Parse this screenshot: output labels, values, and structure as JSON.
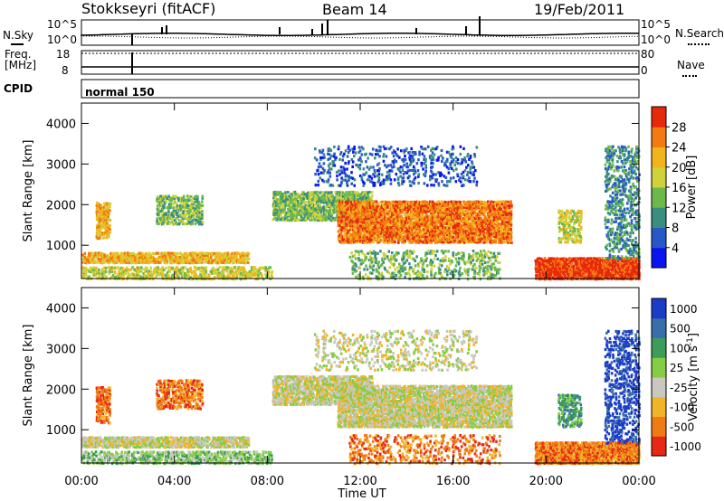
{
  "header": {
    "title": "Stokkseyri (fitACF)",
    "beam": "Beam 14",
    "date": "19/Feb/2011"
  },
  "noise_panel": {
    "left_label": "N.Sky",
    "right_label": "N.Search",
    "y_ticks_left": [
      "10^5",
      "10^0"
    ],
    "y_ticks_right": [
      "10^5",
      "10^0"
    ]
  },
  "freq_panel": {
    "left_label_line1": "Freq.",
    "left_label_line2": "[MHz]",
    "right_label": "Nave",
    "y_ticks_left": [
      "18",
      "8"
    ],
    "y_ticks_right": [
      "80",
      "0"
    ]
  },
  "cpid_panel": {
    "label": "CPID",
    "program": "normal 150"
  },
  "chart_data": [
    {
      "type": "heatmap",
      "title": "",
      "parameter": "Power",
      "xlabel": "Time UT",
      "ylabel": "Slant Range [km]",
      "xlim": [
        "00:00",
        "24:00"
      ],
      "ylim": [
        180,
        4500
      ],
      "x_ticks": [
        "00:00",
        "04:00",
        "08:00",
        "12:00",
        "16:00",
        "20:00",
        "00:00"
      ],
      "y_ticks": [
        1000,
        2000,
        3000,
        4000
      ],
      "colorbar": {
        "label": "Power [dB]",
        "ticks": [
          "4",
          "8",
          "12",
          "16",
          "20",
          "24",
          "28"
        ],
        "colors": [
          "#0a14f0",
          "#2858c8",
          "#3a8e80",
          "#6cb84a",
          "#cfd23a",
          "#f2b41c",
          "#f27a10",
          "#e8280a"
        ]
      },
      "regions": [
        {
          "t0": 0.0,
          "t1": 8.2,
          "r0": 200,
          "r1": 520,
          "level": 4,
          "density": 0.55
        },
        {
          "t0": 0.0,
          "t1": 7.2,
          "r0": 600,
          "r1": 850,
          "level": 5,
          "density": 0.8
        },
        {
          "t0": 0.6,
          "t1": 1.2,
          "r0": 1200,
          "r1": 2100,
          "level": 5,
          "density": 0.7
        },
        {
          "t0": 3.2,
          "t1": 5.2,
          "r0": 1550,
          "r1": 2250,
          "level": 3,
          "density": 0.55
        },
        {
          "t0": 8.2,
          "t1": 12.5,
          "r0": 1650,
          "r1": 2350,
          "level": 3,
          "density": 0.75
        },
        {
          "t0": 11.0,
          "t1": 18.5,
          "r0": 1100,
          "r1": 2150,
          "level": 6,
          "density": 0.8
        },
        {
          "t0": 10.0,
          "t1": 17.0,
          "r0": 2500,
          "r1": 3500,
          "level": 1,
          "density": 0.2
        },
        {
          "t0": 11.5,
          "t1": 18.0,
          "r0": 200,
          "r1": 900,
          "level": 3,
          "density": 0.25
        },
        {
          "t0": 19.5,
          "t1": 24.0,
          "r0": 200,
          "r1": 720,
          "level": 7,
          "density": 0.9
        },
        {
          "t0": 20.5,
          "t1": 21.5,
          "r0": 1100,
          "r1": 1900,
          "level": 4,
          "density": 0.5
        },
        {
          "t0": 22.5,
          "t1": 24.0,
          "r0": 700,
          "r1": 3500,
          "level": 2,
          "density": 0.35
        }
      ]
    },
    {
      "type": "heatmap",
      "title": "",
      "parameter": "Velocity",
      "xlabel": "Time UT",
      "ylabel": "Slant Range [km]",
      "xlim": [
        "00:00",
        "24:00"
      ],
      "ylim": [
        180,
        4500
      ],
      "x_ticks": [
        "00:00",
        "04:00",
        "08:00",
        "12:00",
        "16:00",
        "20:00",
        "00:00"
      ],
      "y_ticks": [
        1000,
        2000,
        3000,
        4000
      ],
      "colorbar": {
        "label": "Velocity [m s^-1]",
        "ticks": [
          "1000",
          "500",
          "100",
          "25",
          "-25",
          "-100",
          "-500",
          "-1000"
        ],
        "colors": [
          "#1a3cc8",
          "#3a6ea8",
          "#3c9c5a",
          "#86cc44",
          "#c8c8c0",
          "#f0b428",
          "#f07a14",
          "#e62814"
        ]
      },
      "regions": [
        {
          "t0": 0.0,
          "t1": 8.2,
          "r0": 200,
          "r1": 520,
          "level": 3,
          "density": 0.55
        },
        {
          "t0": 0.0,
          "t1": 7.2,
          "r0": 600,
          "r1": 850,
          "level": 4,
          "density": 0.8
        },
        {
          "t0": 0.6,
          "t1": 1.2,
          "r0": 1200,
          "r1": 2100,
          "level": 6,
          "density": 0.7
        },
        {
          "t0": 3.2,
          "t1": 5.2,
          "r0": 1550,
          "r1": 2250,
          "level": 6,
          "density": 0.55
        },
        {
          "t0": 8.2,
          "t1": 12.5,
          "r0": 1650,
          "r1": 2350,
          "level": 4,
          "density": 0.75
        },
        {
          "t0": 11.0,
          "t1": 18.5,
          "r0": 1100,
          "r1": 2150,
          "level": 4,
          "density": 0.8
        },
        {
          "t0": 10.0,
          "t1": 17.0,
          "r0": 2500,
          "r1": 3500,
          "level": 4,
          "density": 0.2
        },
        {
          "t0": 11.5,
          "t1": 18.0,
          "r0": 200,
          "r1": 900,
          "level": 6,
          "density": 0.25
        },
        {
          "t0": 19.5,
          "t1": 24.0,
          "r0": 200,
          "r1": 720,
          "level": 6,
          "density": 0.9
        },
        {
          "t0": 20.5,
          "t1": 21.5,
          "r0": 1100,
          "r1": 1900,
          "level": 2,
          "density": 0.5
        },
        {
          "t0": 22.5,
          "t1": 24.0,
          "r0": 700,
          "r1": 3500,
          "level": 0,
          "density": 0.35
        }
      ]
    }
  ]
}
